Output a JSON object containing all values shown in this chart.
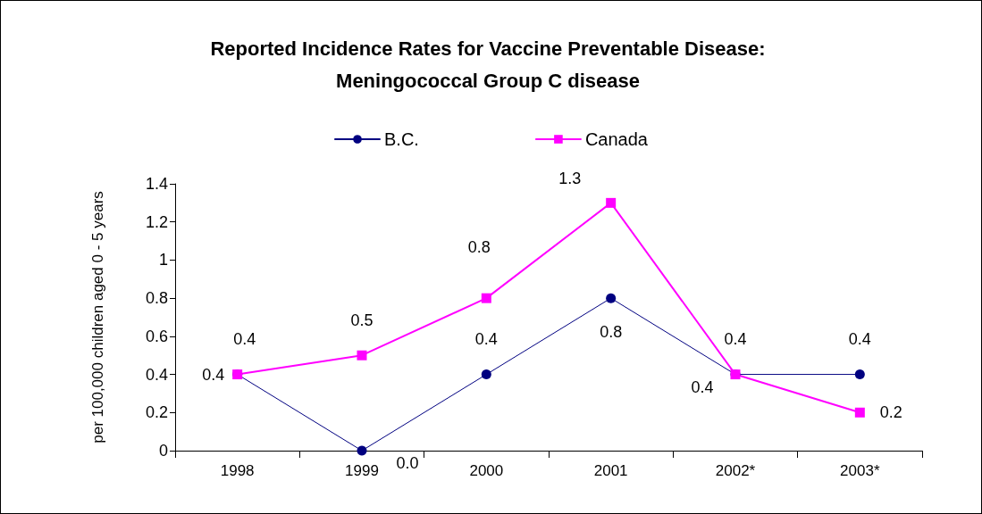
{
  "chart_data": {
    "type": "line",
    "title": "Reported Incidence Rates for Vaccine Preventable Disease:\nMeningococcal Group C disease",
    "ylabel": "per 100,000 children aged 0 - 5 years",
    "categories": [
      "1998",
      "1999",
      "2000",
      "2001",
      "2002*",
      "2003*"
    ],
    "series": [
      {
        "name": "B.C.",
        "color": "#000080",
        "marker": "circle",
        "values": [
          0.4,
          0,
          0.4,
          0.8,
          0.4,
          0.4
        ],
        "value_labels": [
          "0.4",
          "0.0",
          "0.4",
          "0.8",
          "0.4",
          "0.4"
        ]
      },
      {
        "name": "Canada",
        "color": "#ff00ff",
        "marker": "square",
        "values": [
          0.4,
          0.5,
          0.8,
          1.3,
          0.4,
          0.2
        ],
        "value_labels": [
          "0.4",
          "0.5",
          "0.8",
          "1.3",
          "0.4",
          "0.2"
        ]
      }
    ],
    "ylim": [
      0,
      1.4
    ],
    "yticks": [
      0,
      0.2,
      0.4,
      0.6,
      0.8,
      1,
      1.2,
      1.4
    ],
    "grid": false,
    "legend": "top",
    "line_style": "solid"
  }
}
